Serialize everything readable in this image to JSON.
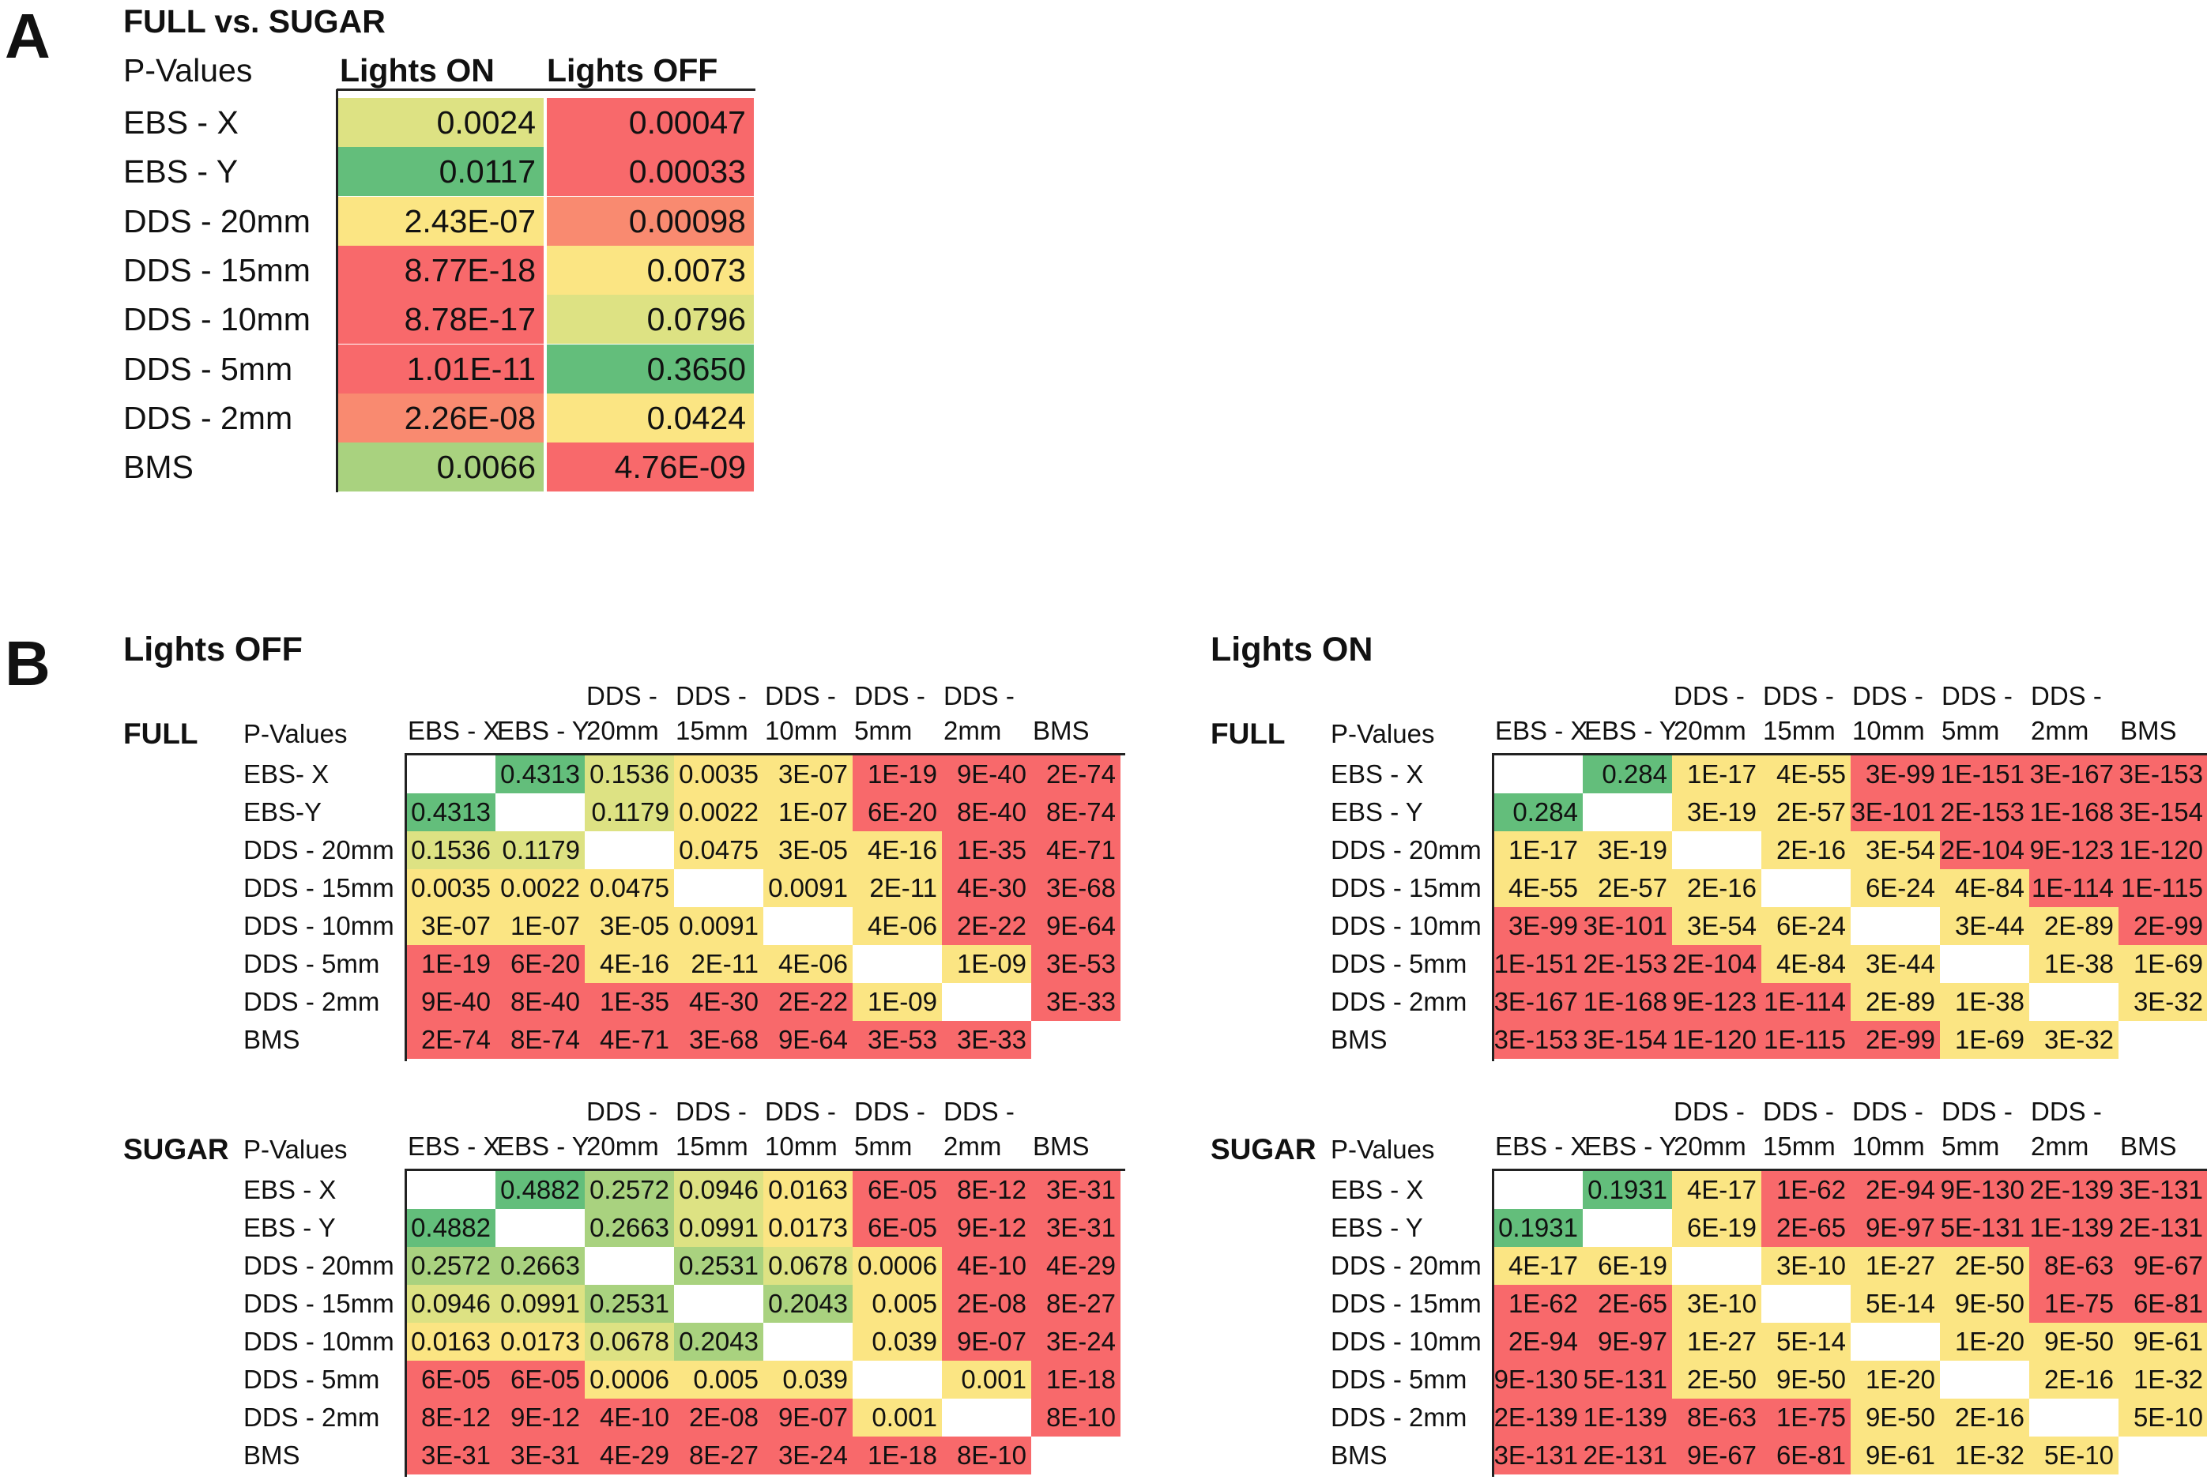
{
  "colors": {
    "red": "#f8696b",
    "salmon": "#f98a70",
    "yellow": "#fbe583",
    "yellow_green": "#dde283",
    "light_green": "#a9d27f",
    "green": "#63be7b",
    "white": "#ffffff"
  },
  "panel_a": {
    "letter": "A",
    "title": "FULL vs. SUGAR",
    "header": {
      "label": "P-Values",
      "col1": "Lights ON",
      "col2": "Lights OFF"
    },
    "rows": [
      {
        "label": "EBS - X",
        "on": "0.0024",
        "on_color": "yellow_green",
        "off": "0.00047",
        "off_color": "red"
      },
      {
        "label": "EBS - Y",
        "on": "0.0117",
        "on_color": "green",
        "off": "0.00033",
        "off_color": "red"
      },
      {
        "label": "DDS - 20mm",
        "on": "2.43E-07",
        "on_color": "yellow",
        "off": "0.00098",
        "off_color": "salmon"
      },
      {
        "label": "DDS - 15mm",
        "on": "8.77E-18",
        "on_color": "red",
        "off": "0.0073",
        "off_color": "yellow"
      },
      {
        "label": "DDS - 10mm",
        "on": "8.78E-17",
        "on_color": "red",
        "off": "0.0796",
        "off_color": "yellow_green"
      },
      {
        "label": "DDS - 5mm",
        "on": "1.01E-11",
        "on_color": "red",
        "off": "0.3650",
        "off_color": "green"
      },
      {
        "label": "DDS - 2mm",
        "on": "2.26E-08",
        "on_color": "salmon",
        "off": "0.0424",
        "off_color": "yellow"
      },
      {
        "label": "BMS",
        "on": "0.0066",
        "on_color": "light_green",
        "off": "4.76E-09",
        "off_color": "red"
      }
    ]
  },
  "panel_b": {
    "letter": "B",
    "col_headers": [
      [
        "",
        "EBS - X"
      ],
      [
        "",
        "EBS - Y"
      ],
      [
        "DDS -",
        "20mm"
      ],
      [
        "DDS -",
        "15mm"
      ],
      [
        "DDS -",
        "10mm"
      ],
      [
        "DDS -",
        "5mm"
      ],
      [
        "DDS -",
        "2mm"
      ],
      [
        "",
        "BMS"
      ]
    ],
    "p_label": "P-Values",
    "lights_off": {
      "title": "Lights OFF",
      "full": {
        "name": "FULL",
        "row_labels": [
          "EBS- X",
          "EBS-Y",
          "DDS - 20mm",
          "DDS - 15mm",
          "DDS - 10mm",
          "DDS - 5mm",
          "DDS - 2mm",
          "BMS"
        ],
        "cells": [
          [
            "",
            "0.4313",
            "0.1536",
            "0.0035",
            "3E-07",
            "1E-19",
            "9E-40",
            "2E-74"
          ],
          [
            "0.4313",
            "",
            "0.1179",
            "0.0022",
            "1E-07",
            "6E-20",
            "8E-40",
            "8E-74"
          ],
          [
            "0.1536",
            "0.1179",
            "",
            "0.0475",
            "3E-05",
            "4E-16",
            "1E-35",
            "4E-71"
          ],
          [
            "0.0035",
            "0.0022",
            "0.0475",
            "",
            "0.0091",
            "2E-11",
            "4E-30",
            "3E-68"
          ],
          [
            "3E-07",
            "1E-07",
            "3E-05",
            "0.0091",
            "",
            "4E-06",
            "2E-22",
            "9E-64"
          ],
          [
            "1E-19",
            "6E-20",
            "4E-16",
            "2E-11",
            "4E-06",
            "",
            "1E-09",
            "3E-53"
          ],
          [
            "9E-40",
            "8E-40",
            "1E-35",
            "4E-30",
            "2E-22",
            "1E-09",
            "",
            "3E-33"
          ],
          [
            "2E-74",
            "8E-74",
            "4E-71",
            "3E-68",
            "9E-64",
            "3E-53",
            "3E-33",
            ""
          ]
        ],
        "colors": [
          [
            "white",
            "green",
            "yellow_green",
            "yellow",
            "yellow",
            "red",
            "red",
            "red"
          ],
          [
            "green",
            "white",
            "yellow_green",
            "yellow",
            "yellow",
            "red",
            "red",
            "red"
          ],
          [
            "yellow_green",
            "yellow_green",
            "white",
            "yellow",
            "yellow",
            "yellow",
            "red",
            "red"
          ],
          [
            "yellow",
            "yellow",
            "yellow",
            "white",
            "yellow",
            "yellow",
            "red",
            "red"
          ],
          [
            "yellow",
            "yellow",
            "yellow",
            "yellow",
            "white",
            "yellow",
            "red",
            "red"
          ],
          [
            "red",
            "red",
            "yellow",
            "yellow",
            "yellow",
            "white",
            "yellow",
            "red"
          ],
          [
            "red",
            "red",
            "red",
            "red",
            "red",
            "yellow",
            "white",
            "red"
          ],
          [
            "red",
            "red",
            "red",
            "red",
            "red",
            "red",
            "red",
            "white"
          ]
        ]
      },
      "sugar": {
        "name": "SUGAR",
        "row_labels": [
          "EBS - X",
          "EBS - Y",
          "DDS - 20mm",
          "DDS - 15mm",
          "DDS - 10mm",
          "DDS - 5mm",
          "DDS - 2mm",
          "BMS"
        ],
        "cells": [
          [
            "",
            "0.4882",
            "0.2572",
            "0.0946",
            "0.0163",
            "6E-05",
            "8E-12",
            "3E-31"
          ],
          [
            "0.4882",
            "",
            "0.2663",
            "0.0991",
            "0.0173",
            "6E-05",
            "9E-12",
            "3E-31"
          ],
          [
            "0.2572",
            "0.2663",
            "",
            "0.2531",
            "0.0678",
            "0.0006",
            "4E-10",
            "4E-29"
          ],
          [
            "0.0946",
            "0.0991",
            "0.2531",
            "",
            "0.2043",
            "0.005",
            "2E-08",
            "8E-27"
          ],
          [
            "0.0163",
            "0.0173",
            "0.0678",
            "0.2043",
            "",
            "0.039",
            "9E-07",
            "3E-24"
          ],
          [
            "6E-05",
            "6E-05",
            "0.0006",
            "0.005",
            "0.039",
            "",
            "0.001",
            "1E-18"
          ],
          [
            "8E-12",
            "9E-12",
            "4E-10",
            "2E-08",
            "9E-07",
            "0.001",
            "",
            "8E-10"
          ],
          [
            "3E-31",
            "3E-31",
            "4E-29",
            "8E-27",
            "3E-24",
            "1E-18",
            "8E-10",
            ""
          ]
        ],
        "colors": [
          [
            "white",
            "green",
            "light_green",
            "yellow_green",
            "yellow",
            "red",
            "red",
            "red"
          ],
          [
            "green",
            "white",
            "light_green",
            "yellow_green",
            "yellow",
            "red",
            "red",
            "red"
          ],
          [
            "light_green",
            "light_green",
            "white",
            "light_green",
            "yellow_green",
            "yellow",
            "red",
            "red"
          ],
          [
            "yellow_green",
            "yellow_green",
            "light_green",
            "white",
            "light_green",
            "yellow",
            "red",
            "red"
          ],
          [
            "yellow",
            "yellow",
            "yellow_green",
            "light_green",
            "white",
            "yellow",
            "red",
            "red"
          ],
          [
            "red",
            "red",
            "yellow",
            "yellow",
            "yellow",
            "white",
            "yellow",
            "red"
          ],
          [
            "red",
            "red",
            "red",
            "red",
            "red",
            "yellow",
            "white",
            "red"
          ],
          [
            "red",
            "red",
            "red",
            "red",
            "red",
            "red",
            "red",
            "white"
          ]
        ]
      }
    },
    "lights_on": {
      "title": "Lights ON",
      "full": {
        "name": "FULL",
        "row_labels": [
          "EBS - X",
          "EBS - Y",
          "DDS - 20mm",
          "DDS - 15mm",
          "DDS - 10mm",
          "DDS - 5mm",
          "DDS - 2mm",
          "BMS"
        ],
        "cells": [
          [
            "",
            "0.284",
            "1E-17",
            "4E-55",
            "3E-99",
            "1E-151",
            "3E-167",
            "3E-153"
          ],
          [
            "0.284",
            "",
            "3E-19",
            "2E-57",
            "3E-101",
            "2E-153",
            "1E-168",
            "3E-154"
          ],
          [
            "1E-17",
            "3E-19",
            "",
            "2E-16",
            "3E-54",
            "2E-104",
            "9E-123",
            "1E-120"
          ],
          [
            "4E-55",
            "2E-57",
            "2E-16",
            "",
            "6E-24",
            "4E-84",
            "1E-114",
            "1E-115"
          ],
          [
            "3E-99",
            "3E-101",
            "3E-54",
            "6E-24",
            "",
            "3E-44",
            "2E-89",
            "2E-99"
          ],
          [
            "1E-151",
            "2E-153",
            "2E-104",
            "4E-84",
            "3E-44",
            "",
            "1E-38",
            "1E-69"
          ],
          [
            "3E-167",
            "1E-168",
            "9E-123",
            "1E-114",
            "2E-89",
            "1E-38",
            "",
            "3E-32"
          ],
          [
            "3E-153",
            "3E-154",
            "1E-120",
            "1E-115",
            "2E-99",
            "1E-69",
            "3E-32",
            ""
          ]
        ],
        "colors": [
          [
            "white",
            "green",
            "yellow",
            "yellow",
            "red",
            "red",
            "red",
            "red"
          ],
          [
            "green",
            "white",
            "yellow",
            "yellow",
            "red",
            "red",
            "red",
            "red"
          ],
          [
            "yellow",
            "yellow",
            "white",
            "yellow",
            "yellow",
            "red",
            "red",
            "red"
          ],
          [
            "yellow",
            "yellow",
            "yellow",
            "white",
            "yellow",
            "yellow",
            "red",
            "red"
          ],
          [
            "red",
            "red",
            "yellow",
            "yellow",
            "white",
            "yellow",
            "yellow",
            "red"
          ],
          [
            "red",
            "red",
            "red",
            "yellow",
            "yellow",
            "white",
            "yellow",
            "yellow"
          ],
          [
            "red",
            "red",
            "red",
            "red",
            "yellow",
            "yellow",
            "white",
            "yellow"
          ],
          [
            "red",
            "red",
            "red",
            "red",
            "red",
            "yellow",
            "yellow",
            "white"
          ]
        ]
      },
      "sugar": {
        "name": "SUGAR",
        "row_labels": [
          "EBS - X",
          "EBS - Y",
          "DDS - 20mm",
          "DDS - 15mm",
          "DDS - 10mm",
          "DDS - 5mm",
          "DDS - 2mm",
          "BMS"
        ],
        "cells": [
          [
            "",
            "0.1931",
            "4E-17",
            "1E-62",
            "2E-94",
            "9E-130",
            "2E-139",
            "3E-131"
          ],
          [
            "0.1931",
            "",
            "6E-19",
            "2E-65",
            "9E-97",
            "5E-131",
            "1E-139",
            "2E-131"
          ],
          [
            "4E-17",
            "6E-19",
            "",
            "3E-10",
            "1E-27",
            "2E-50",
            "8E-63",
            "9E-67"
          ],
          [
            "1E-62",
            "2E-65",
            "3E-10",
            "",
            "5E-14",
            "9E-50",
            "1E-75",
            "6E-81"
          ],
          [
            "2E-94",
            "9E-97",
            "1E-27",
            "5E-14",
            "",
            "1E-20",
            "9E-50",
            "9E-61"
          ],
          [
            "9E-130",
            "5E-131",
            "2E-50",
            "9E-50",
            "1E-20",
            "",
            "2E-16",
            "1E-32"
          ],
          [
            "2E-139",
            "1E-139",
            "8E-63",
            "1E-75",
            "9E-50",
            "2E-16",
            "",
            "5E-10"
          ],
          [
            "3E-131",
            "2E-131",
            "9E-67",
            "6E-81",
            "9E-61",
            "1E-32",
            "5E-10",
            ""
          ]
        ],
        "colors": [
          [
            "white",
            "green",
            "yellow",
            "red",
            "red",
            "red",
            "red",
            "red"
          ],
          [
            "green",
            "white",
            "yellow",
            "red",
            "red",
            "red",
            "red",
            "red"
          ],
          [
            "yellow",
            "yellow",
            "white",
            "yellow",
            "yellow",
            "yellow",
            "red",
            "red"
          ],
          [
            "red",
            "red",
            "yellow",
            "white",
            "yellow",
            "yellow",
            "red",
            "red"
          ],
          [
            "red",
            "red",
            "yellow",
            "yellow",
            "white",
            "yellow",
            "yellow",
            "yellow"
          ],
          [
            "red",
            "red",
            "yellow",
            "yellow",
            "yellow",
            "white",
            "yellow",
            "yellow"
          ],
          [
            "red",
            "red",
            "red",
            "red",
            "yellow",
            "yellow",
            "white",
            "yellow"
          ],
          [
            "red",
            "red",
            "red",
            "red",
            "yellow",
            "yellow",
            "yellow",
            "white"
          ]
        ]
      }
    }
  }
}
